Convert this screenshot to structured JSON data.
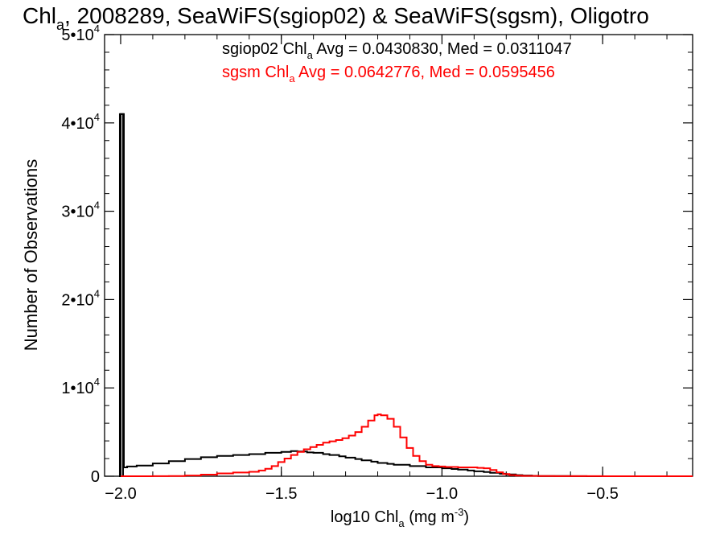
{
  "chart_data": {
    "type": "line",
    "title": {
      "base": "Chl",
      "sub": "a",
      "rest": ", 2008289, SeaWiFS(sgiop02) & SeaWiFS(sgsm), Oligotro"
    },
    "xlabel": {
      "base": "log10 Chl",
      "sub": "a",
      "rest": " (mg m",
      "sup": "-3",
      "end": ")"
    },
    "ylabel": "Number of Observations",
    "xlim": [
      -2.05,
      -0.22
    ],
    "ylim": [
      0,
      50000
    ],
    "grid": false,
    "x_ticks": [
      {
        "value": -2.0,
        "label": "−2.0"
      },
      {
        "value": -1.5,
        "label": "−1.5"
      },
      {
        "value": -1.0,
        "label": "−1.0"
      },
      {
        "value": -0.5,
        "label": "−0.5"
      }
    ],
    "y_ticks": [
      {
        "value": 0,
        "label": "0",
        "sup": ""
      },
      {
        "value": 10000,
        "label": "1•10",
        "sup": "4"
      },
      {
        "value": 20000,
        "label": "2•10",
        "sup": "4"
      },
      {
        "value": 30000,
        "label": "3•10",
        "sup": "4"
      },
      {
        "value": 40000,
        "label": "4•10",
        "sup": "4"
      },
      {
        "value": 50000,
        "label": "5•10",
        "sup": "4"
      }
    ],
    "series": [
      {
        "name": "sgiop02",
        "color": "#000000",
        "legend": {
          "pre": "sgiop02 Chl",
          "sub": "a",
          "post": " Avg = 0.0430830, Med = 0.0311047"
        },
        "x": [
          -2.0,
          -1.99,
          -1.98,
          -1.95,
          -1.9,
          -1.85,
          -1.8,
          -1.75,
          -1.7,
          -1.65,
          -1.6,
          -1.55,
          -1.5,
          -1.47,
          -1.45,
          -1.42,
          -1.4,
          -1.37,
          -1.35,
          -1.32,
          -1.3,
          -1.27,
          -1.25,
          -1.22,
          -1.2,
          -1.17,
          -1.15,
          -1.1,
          -1.05,
          -1.0,
          -0.97,
          -0.95,
          -0.92,
          -0.9,
          -0.87,
          -0.85,
          -0.82,
          -0.8,
          -0.77,
          -0.75,
          -0.72,
          -0.7,
          -0.65,
          -0.6,
          -0.55,
          -0.5,
          -0.4,
          -0.3,
          -0.22
        ],
        "y": [
          41000,
          1000,
          1100,
          1200,
          1450,
          1700,
          1950,
          2150,
          2300,
          2400,
          2500,
          2650,
          2750,
          2850,
          2800,
          2700,
          2650,
          2500,
          2400,
          2250,
          2100,
          1950,
          1800,
          1650,
          1500,
          1400,
          1300,
          1150,
          1000,
          900,
          820,
          750,
          650,
          560,
          470,
          380,
          280,
          200,
          130,
          80,
          50,
          30,
          15,
          8,
          4,
          2,
          1,
          0,
          0
        ]
      },
      {
        "name": "sgsm",
        "color": "#ff0000",
        "legend": {
          "pre": "sgsm Chl",
          "sub": "a",
          "post": " Avg = 0.0642776, Med = 0.0595456"
        },
        "x": [
          -2.0,
          -1.95,
          -1.9,
          -1.85,
          -1.8,
          -1.75,
          -1.7,
          -1.65,
          -1.6,
          -1.57,
          -1.55,
          -1.53,
          -1.51,
          -1.49,
          -1.47,
          -1.45,
          -1.43,
          -1.41,
          -1.39,
          -1.37,
          -1.35,
          -1.33,
          -1.31,
          -1.29,
          -1.27,
          -1.25,
          -1.23,
          -1.21,
          -1.2,
          -1.19,
          -1.17,
          -1.15,
          -1.13,
          -1.11,
          -1.09,
          -1.07,
          -1.05,
          -1.03,
          -1.01,
          -0.99,
          -0.97,
          -0.95,
          -0.93,
          -0.91,
          -0.89,
          -0.87,
          -0.85,
          -0.83,
          -0.81,
          -0.79,
          -0.77,
          -0.75,
          -0.7,
          -0.65,
          -0.6,
          -0.5,
          -0.4,
          -0.22
        ],
        "y": [
          0,
          0,
          10,
          30,
          80,
          180,
          320,
          420,
          500,
          650,
          850,
          1150,
          1600,
          2000,
          2400,
          2750,
          3050,
          3300,
          3550,
          3800,
          3950,
          4100,
          4300,
          4600,
          5000,
          5600,
          6300,
          6900,
          7000,
          6900,
          6500,
          5600,
          4400,
          3200,
          2300,
          1700,
          1300,
          1150,
          1100,
          1050,
          1050,
          1000,
          1000,
          1000,
          950,
          900,
          700,
          450,
          250,
          130,
          70,
          40,
          20,
          10,
          5,
          2,
          0,
          0
        ]
      }
    ]
  }
}
